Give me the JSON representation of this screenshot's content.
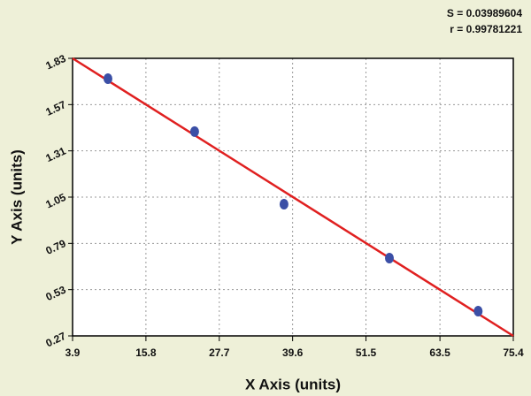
{
  "chart_data": {
    "type": "scatter",
    "annotations": [
      "S = 0.03989604",
      "r = 0.99781221"
    ],
    "x_label": "X Axis (units)",
    "y_label": "Y Axis (units)",
    "series": [
      {
        "color": "#3b4fa6",
        "x": [
          9.64,
          23.7,
          38.2,
          55.3,
          69.7
        ],
        "values": [
          1.716,
          1.418,
          1.01,
          0.707,
          0.409
        ]
      }
    ],
    "fit_line": {
      "color": "#e02020",
      "x": [
        3.9,
        75.4
      ],
      "values": [
        1.83,
        0.27
      ]
    },
    "xlim": [
      3.9,
      75.4
    ],
    "xticks": [
      3.9,
      15.8,
      27.7,
      39.6,
      51.5,
      63.5,
      75.4
    ],
    "ylim": [
      0.27,
      1.83
    ],
    "yticks": [
      0.27,
      0.53,
      0.79,
      1.05,
      1.31,
      1.57,
      1.83
    ],
    "grid": true
  }
}
